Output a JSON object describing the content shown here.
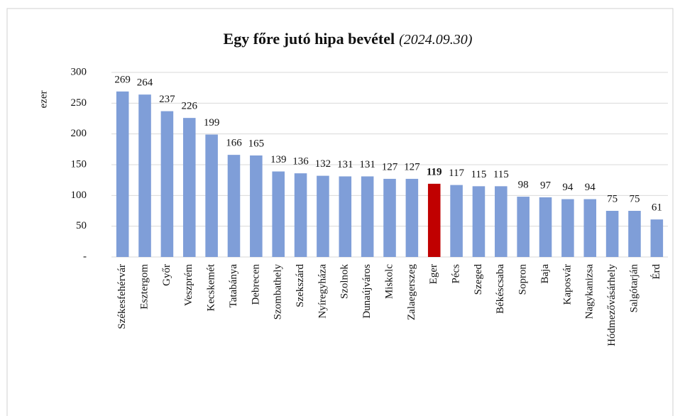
{
  "chart_data": {
    "type": "bar",
    "title": "Egy főre jutó hipa bevétel",
    "subtitle": "(2024.09.30)",
    "y_label": "ezer",
    "categories": [
      "Székesfehérvár",
      "Esztergom",
      "Győr",
      "Veszprém",
      "Kecskemét",
      "Tatabánya",
      "Debrecen",
      "Szombathely",
      "Szekszárd",
      "Nyíregyháza",
      "Szolnok",
      "Dunaújváros",
      "Miskolc",
      "Zalaegerszeg",
      "Eger",
      "Pécs",
      "Szeged",
      "Békéscsaba",
      "Sopron",
      "Baja",
      "Kaposvár",
      "Nagykanizsa",
      "Hódmezővásárhely",
      "Salgótarján",
      "Érd"
    ],
    "values": [
      269,
      264,
      237,
      226,
      199,
      166,
      165,
      139,
      136,
      132,
      131,
      131,
      127,
      127,
      119,
      117,
      115,
      115,
      98,
      97,
      94,
      94,
      75,
      75,
      61
    ],
    "color": "#7f9ed8",
    "colors": [
      "#7f9ed8",
      "#7f9ed8",
      "#7f9ed8",
      "#7f9ed8",
      "#7f9ed8",
      "#7f9ed8",
      "#7f9ed8",
      "#7f9ed8",
      "#7f9ed8",
      "#7f9ed8",
      "#7f9ed8",
      "#7f9ed8",
      "#7f9ed8",
      "#7f9ed8",
      "#c00000",
      "#7f9ed8",
      "#7f9ed8",
      "#7f9ed8",
      "#7f9ed8",
      "#7f9ed8",
      "#7f9ed8",
      "#7f9ed8",
      "#7f9ed8",
      "#7f9ed8",
      "#7f9ed8"
    ],
    "ylim": [
      0,
      300
    ],
    "yticks": [
      {
        "value": 0,
        "label": "-"
      },
      50,
      100,
      150,
      200,
      250,
      300
    ],
    "grid": true
  }
}
